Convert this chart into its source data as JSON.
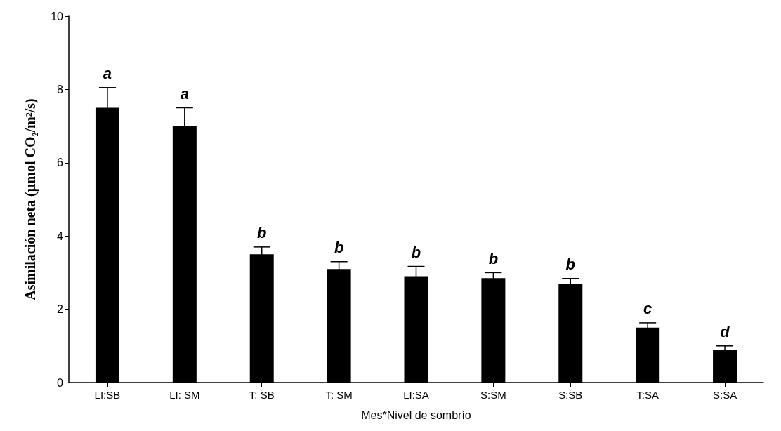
{
  "chart_data": {
    "type": "bar",
    "xlabel": "Mes*Nivel de sombrío",
    "ylabel": "Asimilación neta (µmol CO₂/m²/s)",
    "categories": [
      "LI:SB",
      "LI: SM",
      "T: SB",
      "T: SM",
      "LI:SA",
      "S:SM",
      "S:SB",
      "T:SA",
      "S:SA"
    ],
    "values": [
      7.5,
      7.0,
      3.5,
      3.1,
      2.9,
      2.85,
      2.7,
      1.5,
      0.9
    ],
    "errors": [
      0.55,
      0.5,
      0.2,
      0.2,
      0.27,
      0.15,
      0.14,
      0.13,
      0.1
    ],
    "color": "#000000",
    "ylim": [
      0,
      10
    ],
    "yticks": [
      0,
      2,
      4,
      6,
      8,
      10
    ],
    "grid": false,
    "annotations": [
      "a",
      "a",
      "b",
      "b",
      "b",
      "b",
      "b",
      "c",
      "d"
    ]
  }
}
